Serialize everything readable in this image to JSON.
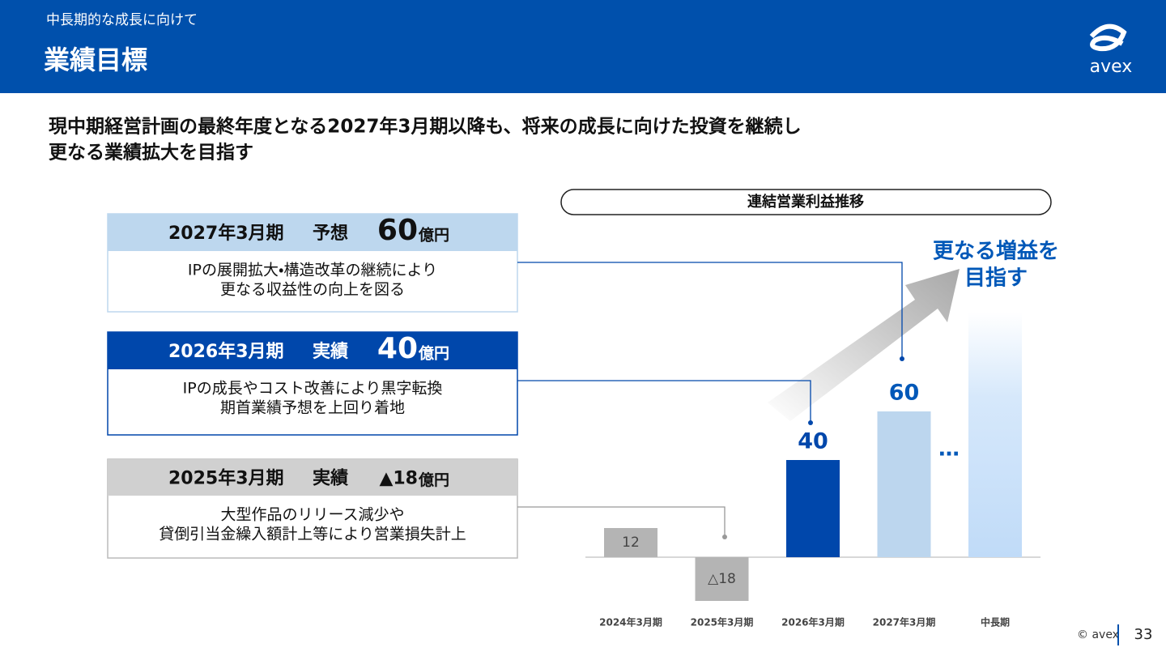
{
  "header": {
    "section": "中長期的な成長に向けて",
    "title": "業績目標",
    "logo": "avex"
  },
  "headline": [
    "現中期経営計画の最終年度となる2027年3月期以降も、将来の成長に向けた投資を継続し",
    "更なる業績拡大を目指す"
  ],
  "boxes": [
    {
      "period": "2027年3月期",
      "kind": "予想",
      "amount": "60",
      "unit": "億円",
      "lines": [
        "IPの展開拡大・構造改革の継続により",
        "更なる収益性の向上を図る"
      ]
    },
    {
      "period": "2026年3月期",
      "kind": "実績",
      "amount": "40",
      "unit": "億円",
      "lines": [
        "IPの成長やコスト改善により黒字転換",
        "期首業績予想を上回り着地"
      ]
    },
    {
      "period": "2025年3月期",
      "kind": "実績",
      "amount": "▲18",
      "unit": "億円",
      "lines": [
        "大型作品のリリース減少や",
        "貸倒引当金繰入額計上等により営業損失計上"
      ]
    }
  ],
  "chart_data": {
    "type": "bar",
    "title": "連結営業利益推移",
    "categories": [
      "2024年3月期",
      "2025年3月期",
      "2026年3月期",
      "2027年3月期",
      "中長期"
    ],
    "values": [
      12,
      -18,
      40,
      60,
      null
    ],
    "value_labels": [
      "12",
      "△18",
      "40",
      "60",
      null
    ],
    "colors": [
      "#b4b4b4",
      "#b4b4b4",
      "#0047ab",
      "#bcd6ee",
      "#c4dcf6"
    ],
    "annotation": [
      "更なる増益を",
      "目指す"
    ],
    "continuation": "…"
  },
  "footer": {
    "copyright": "© avex",
    "page": "33"
  }
}
